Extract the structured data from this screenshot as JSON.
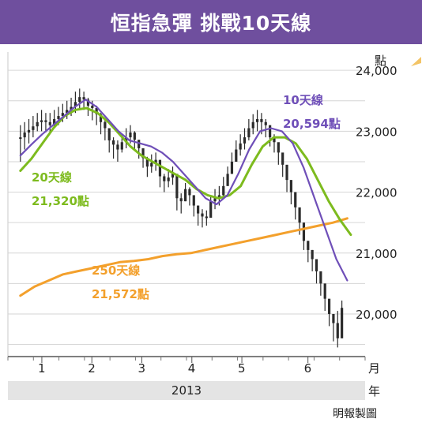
{
  "title": "恒指急彈 挑戰10天線",
  "source": "明報製圖",
  "chart_data": {
    "type": "line",
    "y_unit": "點",
    "x_unit": "月",
    "year_unit": "年",
    "year_label": "2013",
    "ylim": [
      19300,
      24300
    ],
    "y_ticks": [
      20000,
      21000,
      22000,
      23000,
      24000
    ],
    "y_tick_labels": [
      "20,000",
      "21,000",
      "22,000",
      "23,000",
      "24,000"
    ],
    "x_ticks": [
      "1",
      "2",
      "3",
      "4",
      "5",
      "6"
    ],
    "grid": true,
    "colors": {
      "ma10": "#6f4fb8",
      "ma20": "#7dbb1e",
      "ma250": "#f3a02c",
      "candles": "#2b2b2b"
    },
    "annotations": {
      "ma10": {
        "name": "10天線",
        "value": "20,594點"
      },
      "ma20": {
        "name": "20天線",
        "value": "21,320點"
      },
      "ma250": {
        "name": "250天線",
        "value": "21,572點"
      }
    },
    "series": [
      {
        "key": "candles",
        "values": [
          22900,
          22980,
          23020,
          23080,
          23150,
          23180,
          23150,
          23100,
          23200,
          23250,
          23300,
          23350,
          23400,
          23480,
          23560,
          23520,
          23420,
          23380,
          23280,
          23150,
          23050,
          22850,
          22780,
          22700,
          22820,
          22900,
          22980,
          22860,
          22720,
          22560,
          22420,
          22480,
          22530,
          22260,
          22180,
          22240,
          22300,
          21900,
          21850,
          22050,
          21950,
          21780,
          21650,
          21600,
          21580,
          21850,
          21900,
          21950,
          22100,
          22300,
          22500,
          22700,
          22800,
          22900,
          23050,
          23150,
          23200,
          23150,
          23100,
          22900,
          22820,
          22650,
          22450,
          22200,
          22000,
          21750,
          21500,
          21200,
          21050,
          20900,
          20700,
          20500,
          20250,
          20000,
          19850,
          19600,
          20100
        ],
        "highs": [
          23100,
          23150,
          23200,
          23250,
          23300,
          23350,
          23300,
          23300,
          23350,
          23400,
          23450,
          23500,
          23550,
          23650,
          23700,
          23650,
          23550,
          23500,
          23420,
          23300,
          23180,
          23000,
          22900,
          22850,
          22950,
          23050,
          23100,
          23000,
          22850,
          22700,
          22580,
          22620,
          22650,
          22400,
          22300,
          22380,
          22420,
          22050,
          21980,
          22150,
          22080,
          21900,
          21780,
          21720,
          21700,
          21950,
          22050,
          22100,
          22250,
          22420,
          22650,
          22850,
          22950,
          23050,
          23200,
          23280,
          23350,
          23300,
          23200,
          23050,
          22950,
          22800,
          22600,
          22350,
          22150,
          21900,
          21650,
          21400,
          21200,
          21050,
          20850,
          20650,
          20450,
          20200,
          20000,
          20050,
          20220
        ],
        "lows": [
          22500,
          22700,
          22800,
          22900,
          23000,
          23000,
          22980,
          22950,
          23050,
          23100,
          23150,
          23200,
          23250,
          23300,
          23380,
          23350,
          23250,
          23180,
          23100,
          22950,
          22850,
          22650,
          22550,
          22500,
          22650,
          22720,
          22800,
          22680,
          22550,
          22400,
          22250,
          22320,
          22350,
          22080,
          22000,
          22080,
          22120,
          21700,
          21650,
          21850,
          21780,
          21600,
          21450,
          21420,
          21450,
          21650,
          21720,
          21780,
          21900,
          22150,
          22300,
          22500,
          22600,
          22700,
          22850,
          22950,
          23000,
          22950,
          22900,
          22750,
          22650,
          22450,
          22250,
          22000,
          21800,
          21550,
          21300,
          21050,
          20850,
          20700,
          20500,
          20300,
          20050,
          19800,
          19550,
          19450,
          19700
        ]
      },
      {
        "key": "ma10",
        "values": [
          22600,
          22780,
          22950,
          23100,
          23250,
          23400,
          23520,
          23400,
          23200,
          23000,
          22850,
          22800,
          22750,
          22650,
          22500,
          22300,
          22100,
          21900,
          21800,
          21950,
          22300,
          22700,
          23000,
          23050,
          23000,
          22800,
          22400,
          21900,
          21400,
          20900,
          20550
        ]
      },
      {
        "key": "ma20",
        "values": [
          22350,
          22550,
          22800,
          23050,
          23250,
          23350,
          23380,
          23300,
          23150,
          22950,
          22750,
          22600,
          22500,
          22400,
          22300,
          22200,
          22050,
          21950,
          21900,
          21950,
          22100,
          22450,
          22750,
          22900,
          22900,
          22800,
          22550,
          22200,
          21850,
          21550,
          21300
        ]
      },
      {
        "key": "ma250",
        "values": [
          20300,
          20450,
          20550,
          20650,
          20700,
          20750,
          20800,
          20850,
          20870,
          20900,
          20950,
          20980,
          21000,
          21050,
          21100,
          21150,
          21200,
          21250,
          21300,
          21350,
          21400,
          21450,
          21500,
          21570
        ]
      }
    ]
  }
}
